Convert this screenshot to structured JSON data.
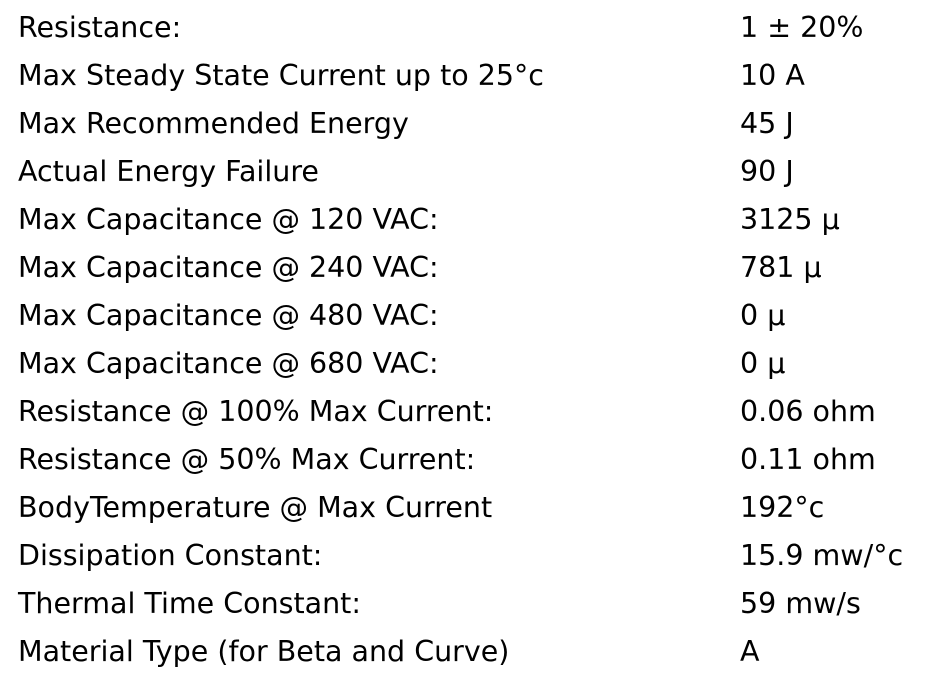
{
  "table": {
    "rows": [
      [
        "Resistance:",
        "1 ± 20%"
      ],
      [
        "Max Steady State Current up to 25°c",
        "10 A"
      ],
      [
        "Max Recommended Energy",
        "45 J"
      ],
      [
        "Actual Energy Failure",
        "90 J"
      ],
      [
        "Max Capacitance @ 120 VAC:",
        "3125 µ"
      ],
      [
        "Max Capacitance @ 240 VAC:",
        "781 µ"
      ],
      [
        "Max Capacitance @ 480 VAC:",
        "0 µ"
      ],
      [
        "Max Capacitance @ 680 VAC:",
        "0 µ"
      ],
      [
        "Resistance @ 100% Max Current:",
        "0.06 ohm"
      ],
      [
        "Resistance @ 50% Max Current:",
        "0.11 ohm"
      ],
      [
        "BodyTemperature @ Max Current",
        "192°c"
      ],
      [
        "Dissipation Constant:",
        "15.9 mw/°c"
      ],
      [
        "Thermal Time Constant:",
        "59 mw/s"
      ],
      [
        "Material Type (for Beta and Curve)",
        "A"
      ]
    ]
  }
}
